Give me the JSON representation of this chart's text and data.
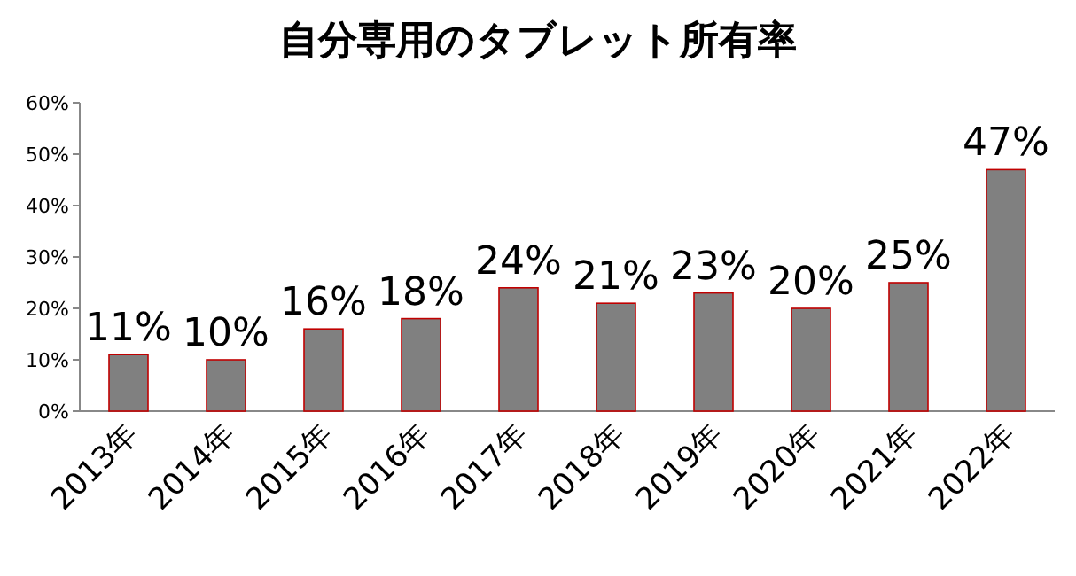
{
  "chart_data": {
    "type": "bar",
    "title": "自分専用のタブレット所有率",
    "categories": [
      "2013年",
      "2014年",
      "2015年",
      "2016年",
      "2017年",
      "2018年",
      "2019年",
      "2020年",
      "2021年",
      "2022年"
    ],
    "values": [
      11,
      10,
      16,
      18,
      24,
      21,
      23,
      20,
      25,
      47
    ],
    "value_labels": [
      "11%",
      "10%",
      "16%",
      "18%",
      "24%",
      "21%",
      "23%",
      "20%",
      "25%",
      "47%"
    ],
    "colors": [
      "#808080",
      "#808080",
      "#808080",
      "#808080",
      "#808080",
      "#808080",
      "#808080",
      "#808080",
      "#808080",
      "#808080"
    ],
    "ylim": [
      0,
      60
    ],
    "yticks": [
      {
        "value": 0,
        "label": "0%"
      },
      {
        "value": 10,
        "label": "10%"
      },
      {
        "value": 20,
        "label": "20%"
      },
      {
        "value": 30,
        "label": "30%"
      },
      {
        "value": 40,
        "label": "40%"
      },
      {
        "value": 50,
        "label": "50%"
      },
      {
        "value": 60,
        "label": "60%"
      }
    ]
  }
}
